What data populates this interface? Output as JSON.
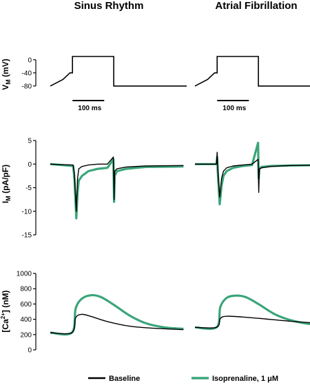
{
  "columns": [
    "Sinus Rhythm",
    "Atrial Fibrillation"
  ],
  "legend": {
    "baseline": {
      "label": "Baseline",
      "color": "#000000"
    },
    "iso": {
      "label": "Isoprenaline, 1 μM",
      "color": "#3aa57a"
    }
  },
  "chart_data": [
    {
      "panel": "voltage-protocol",
      "type": "line",
      "ylabel": "V",
      "ylabel_sub": "M",
      "ylabel_unit": "(mV)",
      "ylim": [
        -95,
        10
      ],
      "yticks": [
        0,
        -40,
        -80
      ],
      "scale_bar": {
        "label": "100 ms",
        "duration_ms": 100
      },
      "series": [
        {
          "x_ms": [
            0,
            40,
            62,
            70,
            70,
            100,
            100,
            200,
            200,
            430
          ],
          "y_mV": [
            -80,
            -60,
            -40,
            -40,
            10,
            10,
            10,
            10,
            -80,
            -80
          ]
        }
      ]
    },
    {
      "panel": "membrane-current",
      "type": "line",
      "ylabel": "I",
      "ylabel_sub": "M",
      "ylabel_unit": "(pA/pF)",
      "ylim": [
        -15,
        5
      ],
      "yticks": [
        5,
        0,
        -5,
        -10,
        -15
      ],
      "series": [
        {
          "name": "Baseline",
          "column": "Sinus Rhythm",
          "x_ms": [
            0,
            72,
            76,
            82,
            86,
            90,
            100,
            120,
            150,
            180,
            199,
            201,
            203,
            210,
            240,
            300,
            420
          ],
          "y": [
            0,
            -0.2,
            -2,
            -10,
            -3,
            -1,
            -0.5,
            -0.2,
            0,
            0,
            1.5,
            -7.5,
            -1.5,
            -1,
            -0.6,
            -0.4,
            -0.3
          ]
        },
        {
          "name": "Isoprenaline, 1 μM",
          "column": "Sinus Rhythm",
          "x_ms": [
            0,
            72,
            76,
            82,
            86,
            90,
            100,
            120,
            150,
            180,
            199,
            201,
            203,
            210,
            240,
            300,
            420
          ],
          "y": [
            0,
            -0.4,
            -3,
            -11.5,
            -6,
            -3.5,
            -2.5,
            -1.5,
            -1,
            -0.8,
            1,
            -8,
            -2.5,
            -1.5,
            -1,
            -0.6,
            -0.5
          ]
        },
        {
          "name": "Baseline",
          "column": "Atrial Fibrillation",
          "x_ms": [
            0,
            68,
            70,
            72,
            78,
            84,
            90,
            100,
            120,
            150,
            180,
            199,
            201,
            203,
            210,
            240,
            300,
            420
          ],
          "y": [
            0,
            0,
            2.5,
            -1,
            -7,
            -3,
            -1.5,
            -0.8,
            -0.4,
            -0.2,
            0,
            1,
            -6,
            -1,
            -0.8,
            -0.5,
            -0.3,
            -0.2
          ]
        },
        {
          "name": "Isoprenaline, 1 μM",
          "column": "Atrial Fibrillation",
          "x_ms": [
            0,
            68,
            70,
            72,
            78,
            84,
            90,
            100,
            120,
            150,
            180,
            199,
            201,
            203,
            210,
            240,
            300,
            420
          ],
          "y": [
            0,
            0,
            1.5,
            -2,
            -8.5,
            -4.5,
            -2.5,
            -1.5,
            -0.8,
            -0.4,
            -0.2,
            4.5,
            -3,
            -1,
            -0.6,
            -0.4,
            -0.3,
            -0.2
          ]
        }
      ]
    },
    {
      "panel": "calcium-transient",
      "type": "line",
      "ylabel": "[Ca",
      "ylabel_sup": "2+",
      "ylabel_unit": "] (nM)",
      "ylim": [
        0,
        1000
      ],
      "yticks": [
        1000,
        800,
        600,
        400,
        200,
        0
      ],
      "series": [
        {
          "name": "Baseline",
          "column": "Sinus Rhythm",
          "x_ms": [
            0,
            68,
            80,
            100,
            130,
            180,
            250,
            320,
            420
          ],
          "y": [
            225,
            225,
            420,
            465,
            435,
            370,
            310,
            285,
            265
          ]
        },
        {
          "name": "Isoprenaline, 1 μM",
          "column": "Sinus Rhythm",
          "x_ms": [
            0,
            68,
            80,
            100,
            130,
            160,
            200,
            250,
            300,
            360,
            420
          ],
          "y": [
            225,
            225,
            540,
            670,
            715,
            690,
            590,
            450,
            350,
            295,
            275
          ]
        },
        {
          "name": "Baseline",
          "column": "Atrial Fibrillation",
          "x_ms": [
            0,
            68,
            80,
            100,
            150,
            220,
            300,
            420
          ],
          "y": [
            295,
            295,
            410,
            440,
            430,
            405,
            375,
            340
          ]
        },
        {
          "name": "Isoprenaline, 1 μM",
          "column": "Atrial Fibrillation",
          "x_ms": [
            0,
            68,
            80,
            100,
            130,
            160,
            200,
            250,
            300,
            360,
            420
          ],
          "y": [
            295,
            295,
            560,
            680,
            710,
            690,
            600,
            470,
            390,
            340,
            325
          ]
        }
      ]
    }
  ]
}
